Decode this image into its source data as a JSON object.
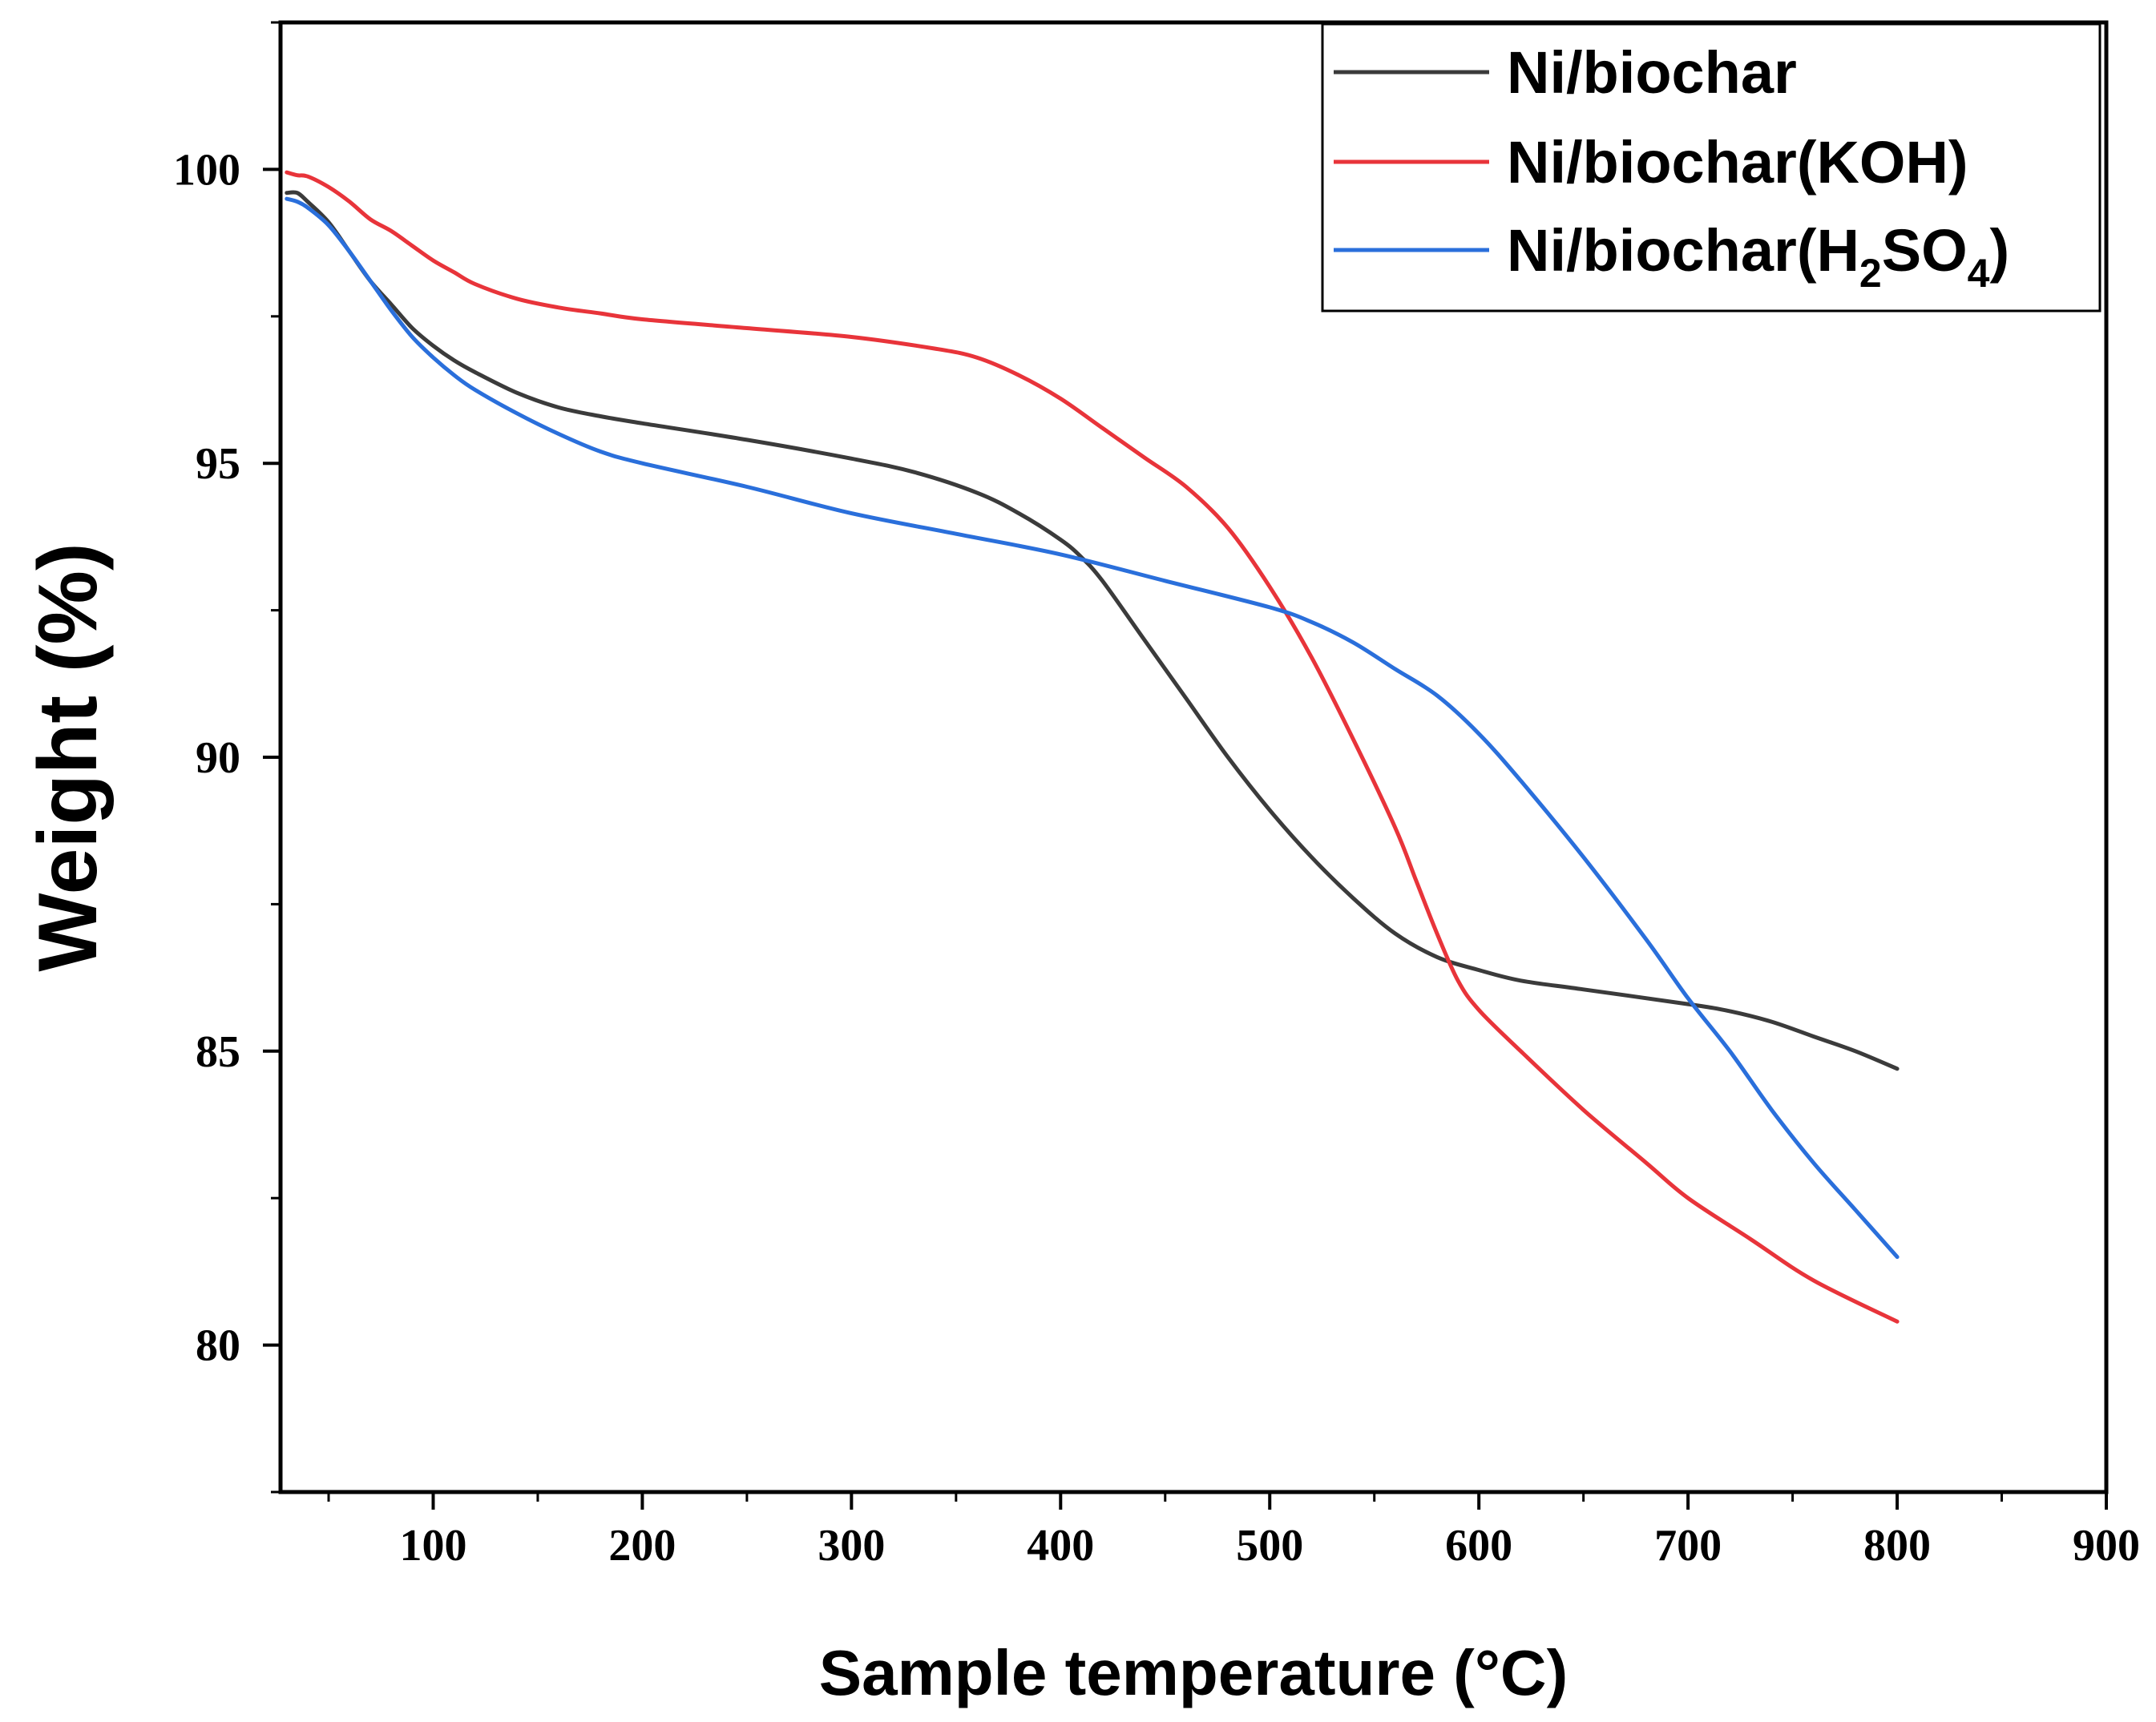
{
  "chart_data": {
    "type": "line",
    "title": "",
    "xlabel": "Sample temperature (°C)",
    "ylabel": "Weight  (%)",
    "xlim": [
      27,
      900
    ],
    "ylim": [
      77.5,
      102.5
    ],
    "xticks": [
      100,
      200,
      300,
      400,
      500,
      600,
      700,
      800,
      900
    ],
    "xtick_labels": [
      "100",
      "200",
      "300",
      "400",
      "500",
      "600",
      "700",
      "800",
      "900"
    ],
    "yticks": [
      80,
      85,
      90,
      95,
      100
    ],
    "ytick_labels": [
      "80",
      "85",
      "90",
      "95",
      "100"
    ],
    "legend_position": "top-right",
    "grid": false,
    "series": [
      {
        "name": "Ni/biochar",
        "legend_parts": [
          "Ni/biochar"
        ],
        "color": "#3b3b3b",
        "x": [
          30,
          35,
          40,
          50,
          60,
          70,
          80,
          90,
          100,
          110,
          120,
          140,
          160,
          180,
          200,
          250,
          300,
          330,
          360,
          380,
          400,
          410,
          420,
          440,
          460,
          480,
          500,
          520,
          540,
          560,
          580,
          600,
          620,
          650,
          700,
          720,
          740,
          760,
          780,
          800
        ],
        "y": [
          99.6,
          99.6,
          99.45,
          99.1,
          98.6,
          98.1,
          97.7,
          97.3,
          97.0,
          96.75,
          96.55,
          96.2,
          95.95,
          95.8,
          95.68,
          95.4,
          95.08,
          94.85,
          94.5,
          94.15,
          93.7,
          93.4,
          93.0,
          92.0,
          91.0,
          90.0,
          89.1,
          88.3,
          87.6,
          87.0,
          86.6,
          86.38,
          86.2,
          86.05,
          85.8,
          85.68,
          85.5,
          85.25,
          85.0,
          84.7
        ]
      },
      {
        "name": "Ni/biochar(KOH)",
        "legend_parts": [
          "Ni/biochar(KOH)"
        ],
        "color": "#e8343a",
        "x": [
          30,
          35,
          40,
          50,
          60,
          70,
          80,
          90,
          100,
          110,
          120,
          140,
          160,
          180,
          200,
          250,
          300,
          340,
          360,
          380,
          400,
          420,
          440,
          460,
          480,
          500,
          520,
          540,
          560,
          570,
          580,
          590,
          600,
          620,
          650,
          680,
          700,
          730,
          760,
          800
        ],
        "y": [
          99.95,
          99.9,
          99.88,
          99.7,
          99.45,
          99.15,
          98.95,
          98.7,
          98.45,
          98.25,
          98.05,
          97.8,
          97.65,
          97.55,
          97.45,
          97.3,
          97.15,
          96.95,
          96.8,
          96.5,
          96.1,
          95.6,
          95.1,
          94.6,
          93.9,
          92.9,
          91.7,
          90.3,
          88.8,
          87.9,
          87.0,
          86.2,
          85.7,
          85.0,
          84.0,
          83.1,
          82.5,
          81.8,
          81.1,
          80.4
        ]
      },
      {
        "name": "Ni/biochar(H2SO4)",
        "legend_parts": [
          "Ni/biochar(H",
          "2",
          "SO",
          "4",
          ")"
        ],
        "color": "#2a6fdb",
        "x": [
          30,
          35,
          40,
          50,
          60,
          70,
          80,
          90,
          100,
          110,
          120,
          140,
          160,
          180,
          200,
          250,
          300,
          350,
          400,
          450,
          500,
          520,
          540,
          560,
          580,
          600,
          620,
          650,
          680,
          700,
          720,
          740,
          760,
          780,
          800
        ],
        "y": [
          99.5,
          99.45,
          99.35,
          99.05,
          98.6,
          98.1,
          97.6,
          97.15,
          96.8,
          96.5,
          96.25,
          95.85,
          95.5,
          95.2,
          95.0,
          94.6,
          94.15,
          93.8,
          93.45,
          93.0,
          92.55,
          92.3,
          91.95,
          91.5,
          91.05,
          90.4,
          89.6,
          88.3,
          86.9,
          85.9,
          85.0,
          84.0,
          83.1,
          82.3,
          81.5
        ]
      }
    ]
  }
}
